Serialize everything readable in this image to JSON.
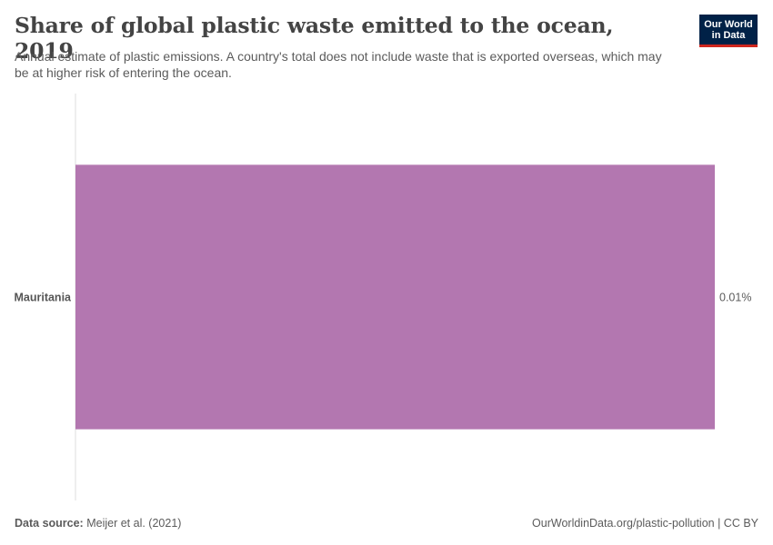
{
  "header": {
    "title": "Share of global plastic waste emitted to the ocean, 2019",
    "subtitle": "Annual estimate of plastic emissions. A country's total does not include waste that is exported overseas, which may be at higher risk of entering the ocean."
  },
  "logo": {
    "line1": "Our World",
    "line2": "in Data"
  },
  "chart_data": {
    "type": "bar",
    "orientation": "horizontal",
    "categories": [
      "Mauritania"
    ],
    "values": [
      0.01
    ],
    "value_labels": [
      "0.01%"
    ],
    "xlim": [
      0,
      0.01
    ],
    "bar_color": "#b377b0",
    "grid": false
  },
  "footer": {
    "source_label": "Data source:",
    "source_text": "Meijer et al. (2021)",
    "url_text": "OurWorldinData.org/plastic-pollution | CC BY"
  }
}
